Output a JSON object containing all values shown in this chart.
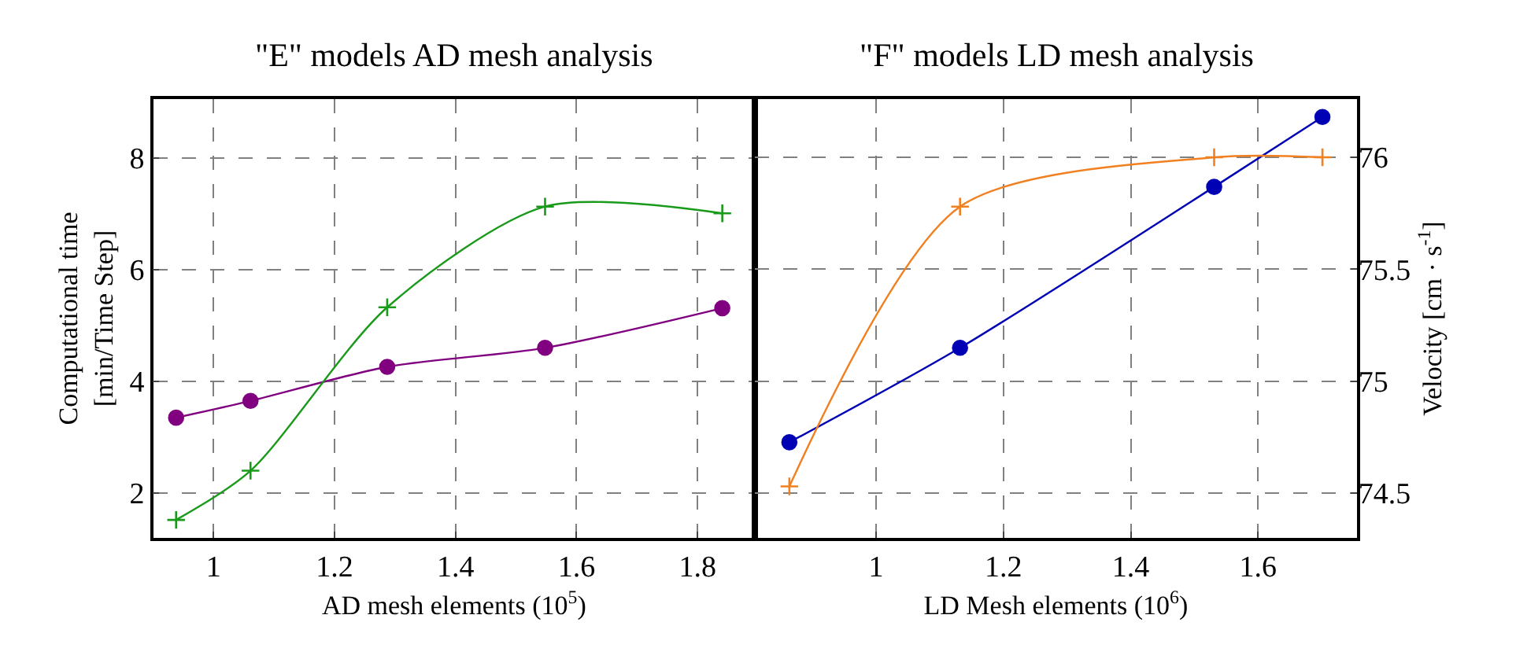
{
  "chart_data": [
    {
      "type": "line",
      "title": "\"E\" models AD mesh analysis",
      "xlabel": "AD mesh elements (10$^{5}$)",
      "ylabel": "Computational time\n[min/Time Step]",
      "xlim": [
        0.9,
        1.895
      ],
      "xticks": [
        1,
        1.2,
        1.4,
        1.6,
        1.8
      ],
      "ylim": [
        1.2,
        9.05
      ],
      "yticks": [
        2,
        4,
        6,
        8
      ],
      "y2lim": [
        74.3,
        76.26
      ],
      "grid": true,
      "tick_labels": "xy",
      "line_style": "solid",
      "series": [
        {
          "color": "#800080",
          "marker": "circle",
          "x": [
            0.938,
            1.061,
            1.287,
            1.548,
            1.841
          ],
          "values": [
            3.35,
            3.65,
            4.26,
            4.6,
            5.31
          ]
        },
        {
          "color": "#1a9a1a",
          "marker": "cross",
          "axis": "y2",
          "x": [
            0.938,
            1.061,
            1.287,
            1.548,
            1.841
          ],
          "values": [
            74.38,
            74.6,
            75.33,
            75.78,
            75.75
          ]
        }
      ]
    },
    {
      "type": "line",
      "title": "\"F\" models LD mesh analysis",
      "xlabel": "LD Mesh elements (10$^{6}$)",
      "y2label": "Velocity [cm · s$^{-1}$]",
      "xlim": [
        0.81,
        1.755
      ],
      "xticks": [
        1,
        1.2,
        1.4,
        1.6
      ],
      "ylim": [
        1.2,
        9.05
      ],
      "y2lim": [
        74.3,
        76.26
      ],
      "y2ticks": [
        74.5,
        75,
        75.5,
        76
      ],
      "grid": true,
      "tick_labels": "xy2",
      "line_style": "solid",
      "series": [
        {
          "color": "#0000b4",
          "marker": "circle",
          "x": [
            0.864,
            1.132,
            1.531,
            1.701
          ],
          "values": [
            2.91,
            4.6,
            7.48,
            8.73
          ]
        },
        {
          "color": "#f08020",
          "marker": "cross",
          "axis": "y2",
          "x": [
            0.864,
            1.132,
            1.531,
            1.701
          ],
          "values": [
            74.53,
            75.78,
            76.0,
            76.0
          ]
        }
      ]
    }
  ]
}
